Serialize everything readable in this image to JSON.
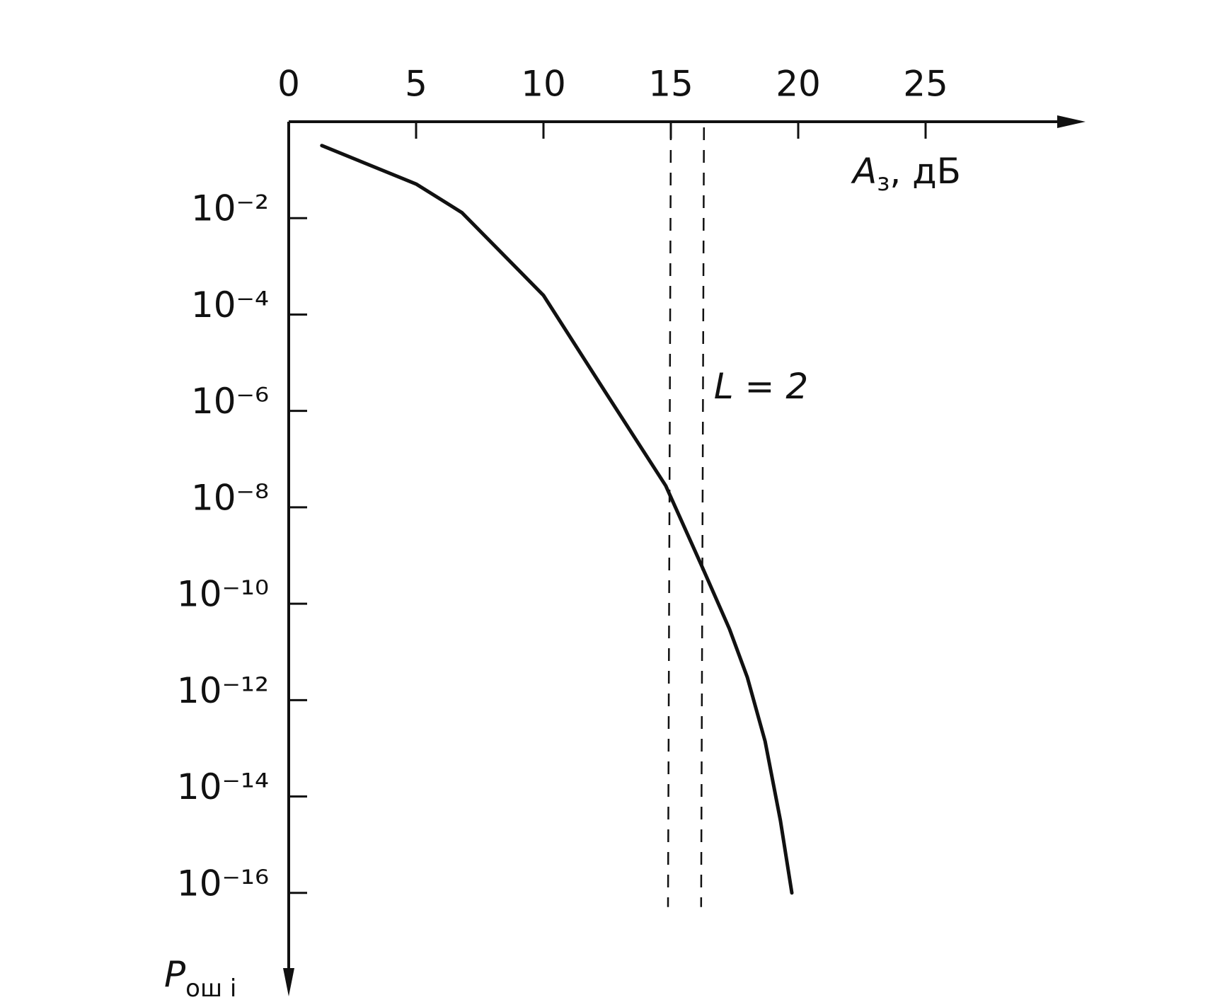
{
  "chart_data": {
    "type": "line",
    "x": [
      1.3,
      5,
      6.8,
      10,
      12.4,
      14.8,
      16.2,
      17.3,
      18,
      18.7,
      19.3,
      19.75
    ],
    "series": [
      {
        "color": "#111111",
        "values": [
          0.32,
          0.051,
          0.013,
          0.00025,
          2.6e-06,
          2.8e-08,
          6.3e-10,
          3e-11,
          3e-12,
          1.4e-13,
          3.2e-15,
          1e-16
        ]
      }
    ],
    "xlim": [
      0,
      31
    ],
    "xticks": [
      0,
      5,
      10,
      15,
      20,
      25
    ],
    "ylim": [
      1,
      1e-18
    ],
    "log_y": true,
    "yticks": [
      {
        "value": 0.01,
        "label": "10⁻²"
      },
      {
        "value": 0.0001,
        "label": "10⁻⁴"
      },
      {
        "value": 1e-06,
        "label": "10⁻⁶"
      },
      {
        "value": 1e-08,
        "label": "10⁻⁸"
      },
      {
        "value": 1e-10,
        "label": "10⁻¹⁰"
      },
      {
        "value": 1e-12,
        "label": "10⁻¹²"
      },
      {
        "value": 1e-14,
        "label": "10⁻¹⁴"
      },
      {
        "value": 1e-16,
        "label": "10⁻¹⁶"
      }
    ],
    "x_label": [
      "A",
      "з",
      ", дБ"
    ],
    "y_label": [
      "P",
      "ош i"
    ],
    "reference_lines": [
      15,
      16.3
    ],
    "annotation": "L = 2"
  }
}
